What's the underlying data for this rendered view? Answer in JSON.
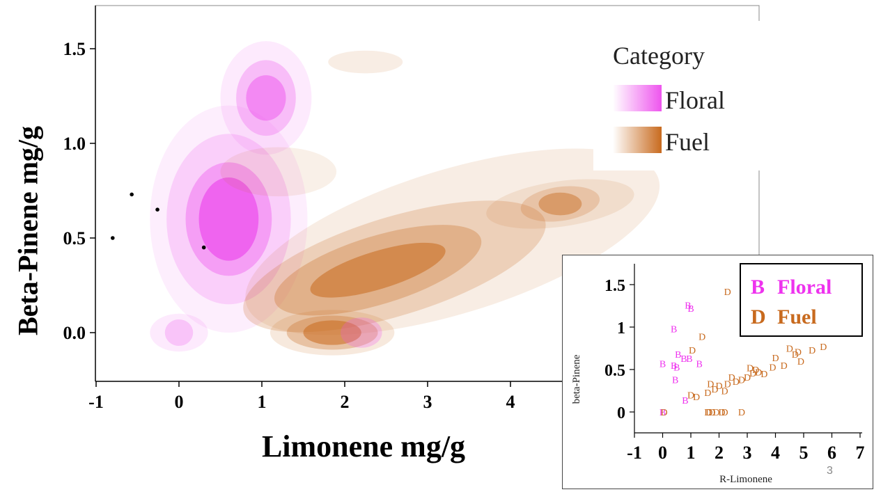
{
  "main": {
    "ylabel": "Beta-Pinene mg/g",
    "xlabel": "Limonene mg/g",
    "legend": {
      "title": "Category",
      "items": [
        "Floral",
        "Fuel"
      ]
    },
    "colors": {
      "floral": "#ee55ee",
      "fuel": "#c86a1e"
    }
  },
  "chart_data": [
    {
      "type": "contour",
      "subtype": "density",
      "xlabel": "Limonene mg/g",
      "ylabel": "Beta-Pinene mg/g",
      "xlim": [
        -1,
        5.2
      ],
      "ylim": [
        -0.25,
        1.75
      ],
      "xticks": [
        "-1",
        "0",
        "1",
        "2",
        "3",
        "4"
      ],
      "yticks": [
        "0.0",
        "0.5",
        "1.0",
        "1.5"
      ],
      "legend": {
        "title": "Category",
        "position": "top-right"
      },
      "series": [
        {
          "name": "Floral",
          "color": "#ee55ee",
          "centers": [
            {
              "x": 0.6,
              "y": 0.6,
              "peak": true
            },
            {
              "x": 1.05,
              "y": 1.24
            },
            {
              "x": 0.0,
              "y": 0.0
            },
            {
              "x": 2.2,
              "y": 0.0
            }
          ]
        },
        {
          "name": "Fuel",
          "color": "#c86a1e",
          "centers": [
            {
              "x": 2.4,
              "y": 0.35,
              "peak": true
            },
            {
              "x": 1.85,
              "y": 0.0
            },
            {
              "x": 4.6,
              "y": 0.68
            },
            {
              "x": 2.25,
              "y": 1.43
            },
            {
              "x": 1.2,
              "y": 0.85
            }
          ]
        }
      ],
      "points": [
        {
          "x": -0.8,
          "y": 0.5
        },
        {
          "x": -0.57,
          "y": 0.73
        },
        {
          "x": -0.26,
          "y": 0.65
        },
        {
          "x": 0.3,
          "y": 0.45
        }
      ]
    },
    {
      "type": "scatter",
      "xlabel": "R-Limonene",
      "ylabel": "beta-Pinene",
      "xlim": [
        -1,
        7
      ],
      "ylim": [
        -0.25,
        1.7
      ],
      "xticks": [
        "-1",
        "0",
        "1",
        "2",
        "3",
        "4",
        "5",
        "6",
        "7"
      ],
      "yticks": [
        "0",
        "0.5",
        "1",
        "1.5"
      ],
      "legend": {
        "position": "top-right",
        "entries": [
          {
            "marker": "B",
            "name": "Floral"
          },
          {
            "marker": "D",
            "name": "Fuel"
          }
        ]
      },
      "series": [
        {
          "name": "Floral",
          "marker": "B",
          "color": "#ee33ee",
          "points": [
            [
              0,
              0.57
            ],
            [
              0.4,
              0.55
            ],
            [
              0.5,
              0.53
            ],
            [
              0.45,
              0.38
            ],
            [
              0.4,
              0.98
            ],
            [
              0.55,
              0.68
            ],
            [
              0.9,
              1.26
            ],
            [
              1.0,
              1.22
            ],
            [
              0.75,
              0.63
            ],
            [
              0.95,
              0.63
            ],
            [
              1.3,
              0.57
            ],
            [
              0.8,
              0.14
            ],
            [
              0.0,
              0.0
            ]
          ]
        },
        {
          "name": "Fuel",
          "marker": "D",
          "color": "#c86a1e",
          "points": [
            [
              1.0,
              0.2
            ],
            [
              1.05,
              0.73
            ],
            [
              1.2,
              0.18
            ],
            [
              1.4,
              0.89
            ],
            [
              1.6,
              0.23
            ],
            [
              1.6,
              0.0
            ],
            [
              1.75,
              0.0
            ],
            [
              1.9,
              0.0
            ],
            [
              2.1,
              0.0
            ],
            [
              2.2,
              0.0
            ],
            [
              1.7,
              0.33
            ],
            [
              1.85,
              0.27
            ],
            [
              2.0,
              0.31
            ],
            [
              2.2,
              0.25
            ],
            [
              2.3,
              0.33
            ],
            [
              2.45,
              0.41
            ],
            [
              2.6,
              0.36
            ],
            [
              2.8,
              0.38
            ],
            [
              3.0,
              0.41
            ],
            [
              3.2,
              0.46
            ],
            [
              3.3,
              0.5
            ],
            [
              3.1,
              0.52
            ],
            [
              3.4,
              0.47
            ],
            [
              3.6,
              0.45
            ],
            [
              3.9,
              0.53
            ],
            [
              4.3,
              0.55
            ],
            [
              4.5,
              0.75
            ],
            [
              4.7,
              0.68
            ],
            [
              4.9,
              0.6
            ],
            [
              4.0,
              0.64
            ],
            [
              5.3,
              0.73
            ],
            [
              5.7,
              0.77
            ],
            [
              4.8,
              0.71
            ],
            [
              2.3,
              1.42
            ],
            [
              2.8,
              0.0
            ],
            [
              1.65,
              0.0
            ],
            [
              0.05,
              0.0
            ]
          ]
        }
      ]
    }
  ],
  "inset": {
    "xlabel": "R-Limonene",
    "ylabel": "beta-Pinene",
    "legend": [
      {
        "marker": "B",
        "name": "Floral"
      },
      {
        "marker": "D",
        "name": "Fuel"
      }
    ]
  },
  "page_number": "3"
}
